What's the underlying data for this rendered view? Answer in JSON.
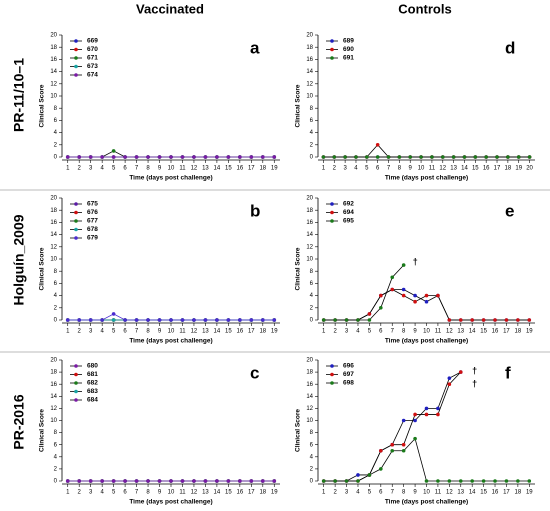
{
  "columns": [
    "Vaccinated",
    "Controls"
  ],
  "rows": [
    "PR-11/10–1",
    "Holguín_2009",
    "PR-2016"
  ],
  "chart_data": [
    {
      "type": "line",
      "label": "a",
      "ylabel": "Clinical Score",
      "xlabel": "Time (days post challenge)",
      "x": [
        1,
        2,
        3,
        4,
        5,
        6,
        7,
        8,
        9,
        10,
        11,
        12,
        13,
        14,
        15,
        16,
        17,
        18,
        19
      ],
      "xlim": [
        0.5,
        19.5
      ],
      "xticks": [
        1,
        2,
        3,
        4,
        5,
        6,
        7,
        8,
        9,
        10,
        11,
        12,
        13,
        14,
        15,
        16,
        17,
        18,
        19
      ],
      "ylim": [
        0,
        20
      ],
      "yticks": [
        0,
        2,
        4,
        6,
        8,
        10,
        12,
        14,
        16,
        18,
        20
      ],
      "series": [
        {
          "name": "669",
          "color": "#1f1fbf",
          "values": [
            0,
            0,
            0,
            0,
            0,
            0,
            0,
            0,
            0,
            0,
            0,
            0,
            0,
            0,
            0,
            0,
            0,
            0,
            0
          ]
        },
        {
          "name": "670",
          "color": "#d01010",
          "values": [
            0,
            0,
            0,
            0,
            0,
            0,
            0,
            0,
            0,
            0,
            0,
            0,
            0,
            0,
            0,
            0,
            0,
            0,
            0
          ]
        },
        {
          "name": "671",
          "color": "#1a7a1a",
          "values": [
            0,
            0,
            0,
            0,
            1,
            0,
            0,
            0,
            0,
            0,
            0,
            0,
            0,
            0,
            0,
            0,
            0,
            0,
            0
          ]
        },
        {
          "name": "673",
          "color": "#1aa5a5",
          "values": [
            0,
            0,
            0,
            0,
            0,
            0,
            0,
            0,
            0,
            0,
            0,
            0,
            0,
            0,
            0,
            0,
            0,
            0,
            0
          ]
        },
        {
          "name": "674",
          "color": "#7a1aa5",
          "values": [
            0,
            0,
            0,
            0,
            0,
            0,
            0,
            0,
            0,
            0,
            0,
            0,
            0,
            0,
            0,
            0,
            0,
            0,
            0
          ]
        }
      ]
    },
    {
      "type": "line",
      "label": "d",
      "ylabel": "Clinical Score",
      "xlabel": "Time (days post challenge)",
      "x": [
        1,
        2,
        3,
        4,
        5,
        6,
        7,
        8,
        9,
        10,
        11,
        12,
        13,
        14,
        15,
        16,
        17,
        18,
        19,
        20
      ],
      "xlim": [
        0.5,
        20.5
      ],
      "xticks": [
        1,
        2,
        3,
        4,
        5,
        6,
        7,
        8,
        9,
        10,
        11,
        12,
        13,
        14,
        15,
        16,
        17,
        18,
        19,
        20
      ],
      "ylim": [
        0,
        20
      ],
      "yticks": [
        0,
        2,
        4,
        6,
        8,
        10,
        12,
        14,
        16,
        18,
        20
      ],
      "series": [
        {
          "name": "689",
          "color": "#1f1fbf",
          "values": [
            0,
            0,
            0,
            0,
            0,
            0,
            0,
            0,
            0,
            0,
            0,
            0,
            0,
            0,
            0,
            0,
            0,
            0,
            0,
            0
          ]
        },
        {
          "name": "690",
          "color": "#d01010",
          "values": [
            0,
            0,
            0,
            0,
            0,
            2,
            0,
            0,
            0,
            0,
            0,
            0,
            0,
            0,
            0,
            0,
            0,
            0,
            0,
            0
          ]
        },
        {
          "name": "691",
          "color": "#1a7a1a",
          "values": [
            0,
            0,
            0,
            0,
            0,
            0,
            0,
            0,
            0,
            0,
            0,
            0,
            0,
            0,
            0,
            0,
            0,
            0,
            0,
            0
          ]
        }
      ]
    },
    {
      "type": "line",
      "label": "b",
      "ylabel": "Clinical Score",
      "xlabel": "Time (days post challenge)",
      "x": [
        1,
        2,
        3,
        4,
        5,
        6,
        7,
        8,
        9,
        10,
        11,
        12,
        13,
        14,
        15,
        16,
        17,
        18,
        19
      ],
      "xlim": [
        0.5,
        19.5
      ],
      "xticks": [
        1,
        2,
        3,
        4,
        5,
        6,
        7,
        8,
        9,
        10,
        11,
        12,
        13,
        14,
        15,
        16,
        17,
        18,
        19
      ],
      "ylim": [
        0,
        20
      ],
      "yticks": [
        0,
        2,
        4,
        6,
        8,
        10,
        12,
        14,
        16,
        18,
        20
      ],
      "series": [
        {
          "name": "675",
          "color": "#5a1aa5",
          "values": [
            0,
            0,
            0,
            0,
            0,
            0,
            0,
            0,
            0,
            0,
            0,
            0,
            0,
            0,
            0,
            0,
            0,
            0,
            0
          ]
        },
        {
          "name": "676",
          "color": "#d01010",
          "values": [
            0,
            0,
            0,
            0,
            0,
            0,
            0,
            0,
            0,
            0,
            0,
            0,
            0,
            0,
            0,
            0,
            0,
            0,
            0
          ]
        },
        {
          "name": "677",
          "color": "#1a7a1a",
          "values": [
            0,
            0,
            0,
            0,
            0,
            0,
            0,
            0,
            0,
            0,
            0,
            0,
            0,
            0,
            0,
            0,
            0,
            0,
            0
          ]
        },
        {
          "name": "678",
          "color": "#1aa5a5",
          "values": [
            0,
            0,
            0,
            0,
            0,
            0,
            0,
            0,
            0,
            0,
            0,
            0,
            0,
            0,
            0,
            0,
            0,
            0,
            0
          ]
        },
        {
          "name": "679",
          "color": "#4a2ad0",
          "values": [
            0,
            0,
            0,
            0,
            1,
            0,
            0,
            0,
            0,
            0,
            0,
            0,
            0,
            0,
            0,
            0,
            0,
            0,
            0
          ]
        }
      ]
    },
    {
      "type": "line",
      "label": "e",
      "ylabel": "Clinical Score",
      "xlabel": "Time (days post challenge)",
      "x": [
        1,
        2,
        3,
        4,
        5,
        6,
        7,
        8,
        9,
        10,
        11,
        12,
        13,
        14,
        15,
        16,
        17,
        18,
        19
      ],
      "xlim": [
        0.5,
        19.5
      ],
      "xticks": [
        1,
        2,
        3,
        4,
        5,
        6,
        7,
        8,
        9,
        10,
        11,
        12,
        13,
        14,
        15,
        16,
        17,
        18,
        19
      ],
      "ylim": [
        0,
        20
      ],
      "yticks": [
        0,
        2,
        4,
        6,
        8,
        10,
        12,
        14,
        16,
        18,
        20
      ],
      "annotations": [
        "†"
      ],
      "series": [
        {
          "name": "692",
          "color": "#1f1fbf",
          "values": [
            0,
            0,
            0,
            0,
            1,
            4,
            5,
            5,
            4,
            3,
            4,
            0,
            0,
            0,
            0,
            0,
            0,
            0,
            0
          ]
        },
        {
          "name": "694",
          "color": "#d01010",
          "values": [
            0,
            0,
            0,
            0,
            1,
            4,
            5,
            4,
            3,
            4,
            4,
            0,
            0,
            0,
            0,
            0,
            0,
            0,
            0
          ]
        },
        {
          "name": "695",
          "color": "#1a7a1a",
          "values": [
            0,
            0,
            0,
            0,
            0,
            2,
            7,
            9,
            null,
            null,
            null,
            null,
            null,
            null,
            null,
            null,
            null,
            null,
            null
          ]
        }
      ]
    },
    {
      "type": "line",
      "label": "c",
      "ylabel": "Clinical Score",
      "xlabel": "Time (days post challenge)",
      "x": [
        1,
        2,
        3,
        4,
        5,
        6,
        7,
        8,
        9,
        10,
        11,
        12,
        13,
        14,
        15,
        16,
        17,
        18,
        19
      ],
      "xlim": [
        0.5,
        19.5
      ],
      "xticks": [
        1,
        2,
        3,
        4,
        5,
        6,
        7,
        8,
        9,
        10,
        11,
        12,
        13,
        14,
        15,
        16,
        17,
        18,
        19
      ],
      "ylim": [
        0,
        20
      ],
      "yticks": [
        0,
        2,
        4,
        6,
        8,
        10,
        12,
        14,
        16,
        18,
        20
      ],
      "series": [
        {
          "name": "680",
          "color": "#7a1aa5",
          "values": [
            0,
            0,
            0,
            0,
            0,
            0,
            0,
            0,
            0,
            0,
            0,
            0,
            0,
            0,
            0,
            0,
            0,
            0,
            0
          ]
        },
        {
          "name": "681",
          "color": "#d01010",
          "values": [
            0,
            0,
            0,
            0,
            0,
            0,
            0,
            0,
            0,
            0,
            0,
            0,
            0,
            0,
            0,
            0,
            0,
            0,
            0
          ]
        },
        {
          "name": "682",
          "color": "#1a7a1a",
          "values": [
            0,
            0,
            0,
            0,
            0,
            0,
            0,
            0,
            0,
            0,
            0,
            0,
            0,
            0,
            0,
            0,
            0,
            0,
            0
          ]
        },
        {
          "name": "683",
          "color": "#1aa5a5",
          "values": [
            0,
            0,
            0,
            0,
            0,
            0,
            0,
            0,
            0,
            0,
            0,
            0,
            0,
            0,
            0,
            0,
            0,
            0,
            0
          ]
        },
        {
          "name": "684",
          "color": "#7a1aa5",
          "values": [
            0,
            0,
            0,
            0,
            0,
            0,
            0,
            0,
            0,
            0,
            0,
            0,
            0,
            0,
            0,
            0,
            0,
            0,
            0
          ]
        }
      ]
    },
    {
      "type": "line",
      "label": "f",
      "ylabel": "Clinical Score",
      "xlabel": "Time (days post challenge)",
      "x": [
        1,
        2,
        3,
        4,
        5,
        6,
        7,
        8,
        9,
        10,
        11,
        12,
        13,
        14,
        15,
        16,
        17,
        18,
        19
      ],
      "xlim": [
        0.5,
        19.5
      ],
      "xticks": [
        1,
        2,
        3,
        4,
        5,
        6,
        7,
        8,
        9,
        10,
        11,
        12,
        13,
        14,
        15,
        16,
        17,
        18,
        19
      ],
      "ylim": [
        0,
        20
      ],
      "yticks": [
        0,
        2,
        4,
        6,
        8,
        10,
        12,
        14,
        16,
        18,
        20
      ],
      "annotations": [
        "†",
        "†"
      ],
      "series": [
        {
          "name": "696",
          "color": "#1f1fbf",
          "values": [
            0,
            0,
            0,
            1,
            1,
            5,
            6,
            10,
            10,
            12,
            12,
            17,
            18,
            null,
            null,
            null,
            null,
            null,
            null
          ]
        },
        {
          "name": "697",
          "color": "#d01010",
          "values": [
            0,
            0,
            0,
            0,
            1,
            5,
            6,
            6,
            11,
            11,
            11,
            16,
            18,
            null,
            null,
            null,
            null,
            null,
            null
          ]
        },
        {
          "name": "698",
          "color": "#1a7a1a",
          "values": [
            0,
            0,
            0,
            0,
            1,
            2,
            5,
            5,
            7,
            0,
            0,
            0,
            0,
            0,
            0,
            0,
            0,
            0,
            0
          ]
        }
      ]
    }
  ]
}
